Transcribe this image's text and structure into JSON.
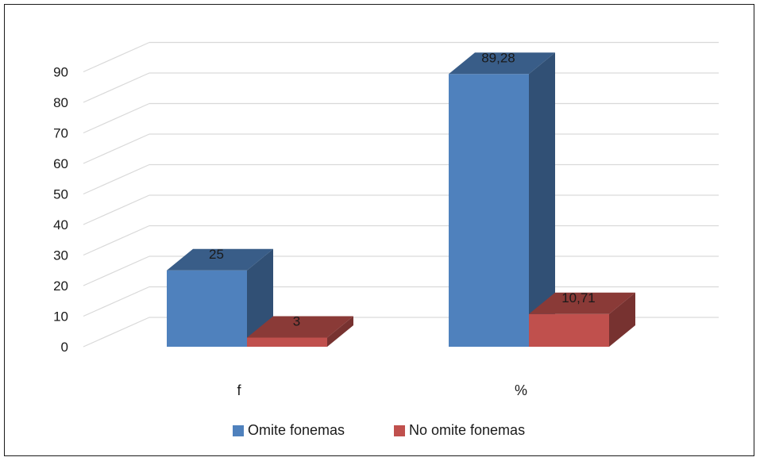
{
  "chart_data": {
    "type": "bar",
    "categories": [
      "f",
      "%"
    ],
    "series": [
      {
        "name": "Omite fonemas",
        "values": [
          25,
          89.28
        ],
        "labels": [
          "25",
          "89,28"
        ],
        "color": "#4F81BD"
      },
      {
        "name": "No omite fonemas",
        "values": [
          3,
          10.71
        ],
        "labels": [
          "3",
          "10,71"
        ],
        "color": "#C0504D"
      }
    ],
    "ylim": [
      0,
      90
    ],
    "yticks": [
      0,
      10,
      20,
      30,
      40,
      50,
      60,
      70,
      80,
      90
    ],
    "grid": true,
    "legend_position": "bottom",
    "style": "3d-clustered-column"
  }
}
